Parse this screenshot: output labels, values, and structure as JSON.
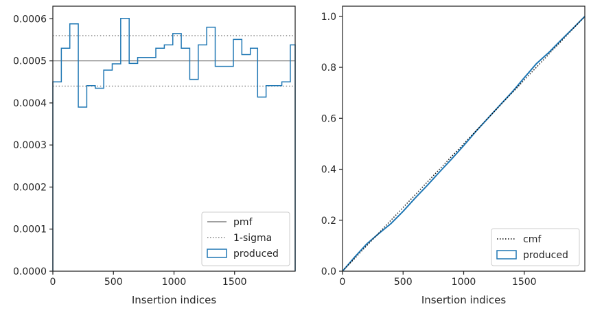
{
  "chart_data": [
    {
      "type": "histogram",
      "xlabel": "Insertion indices",
      "ylabel": "",
      "xlim": [
        0,
        2000
      ],
      "ylim": [
        0,
        0.00063
      ],
      "xticks": [
        0,
        500,
        1000,
        1500
      ],
      "xtick_labels": [
        "0",
        "500",
        "1000",
        "1500"
      ],
      "yticks": [
        0,
        0.0001,
        0.0002,
        0.0003,
        0.0004,
        0.0005,
        0.0006
      ],
      "ytick_labels": [
        "0.0000",
        "0.0001",
        "0.0002",
        "0.0003",
        "0.0004",
        "0.0005",
        "0.0006"
      ],
      "grid": false,
      "legend_position": "bottom-right",
      "bin_edges": [
        0,
        70,
        140,
        210,
        280,
        350,
        420,
        490,
        560,
        630,
        700,
        780,
        850,
        920,
        990,
        1060,
        1130,
        1200,
        1270,
        1340,
        1420,
        1490,
        1560,
        1630,
        1690,
        1760,
        1820,
        1890,
        1960,
        2000
      ],
      "series": [
        {
          "name": "pmf",
          "style": "solid",
          "color": "#808080",
          "value": 0.0005
        },
        {
          "name": "1-sigma",
          "style": "dotted",
          "color": "#808080",
          "values": [
            0.00044,
            0.00056
          ]
        },
        {
          "name": "produced",
          "style": "step",
          "color": "#1f77b4",
          "values": [
            0.00045,
            0.00053,
            0.000588,
            0.00039,
            0.000441,
            0.000435,
            0.000478,
            0.000493,
            0.000601,
            0.000494,
            0.000508,
            0.000508,
            0.00053,
            0.000538,
            0.000565,
            0.00053,
            0.000456,
            0.000538,
            0.00058,
            0.000487,
            0.000487,
            0.000551,
            0.000515,
            0.00053,
            0.000414,
            0.000441,
            0.000441,
            0.00045,
            0.000538
          ]
        }
      ]
    },
    {
      "type": "line",
      "xlabel": "Insertion indices",
      "ylabel": "",
      "xlim": [
        0,
        2000
      ],
      "ylim": [
        0,
        1.04
      ],
      "xticks": [
        0,
        500,
        1000,
        1500
      ],
      "xtick_labels": [
        "0",
        "500",
        "1000",
        "1500"
      ],
      "yticks": [
        0,
        0.2,
        0.4,
        0.6,
        0.8,
        1.0
      ],
      "ytick_labels": [
        "0.0",
        "0.2",
        "0.4",
        "0.6",
        "0.8",
        "1.0"
      ],
      "grid": false,
      "legend_position": "bottom-right",
      "series": [
        {
          "name": "cmf",
          "style": "dotted",
          "color": "#000000",
          "x": [
            0,
            2000
          ],
          "y": [
            0,
            1.0
          ]
        },
        {
          "name": "produced",
          "style": "solid",
          "color": "#1f77b4",
          "x": [
            0,
            100,
            200,
            300,
            400,
            500,
            600,
            700,
            800,
            900,
            1000,
            1100,
            1200,
            1300,
            1400,
            1500,
            1600,
            1700,
            1800,
            1900,
            2000
          ],
          "y": [
            0,
            0.055,
            0.107,
            0.148,
            0.187,
            0.235,
            0.287,
            0.337,
            0.389,
            0.44,
            0.493,
            0.548,
            0.6,
            0.652,
            0.703,
            0.759,
            0.814,
            0.857,
            0.905,
            0.952,
            1.0
          ]
        }
      ]
    }
  ]
}
